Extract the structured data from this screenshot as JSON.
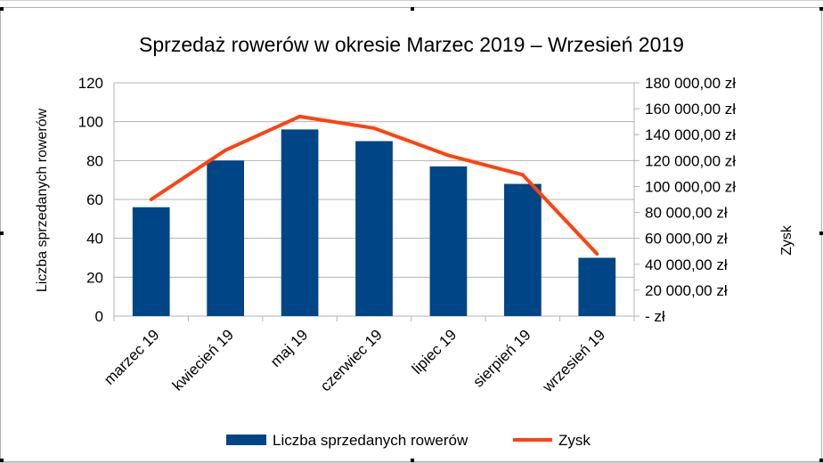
{
  "chart_data": {
    "type": "bar",
    "title": "Sprzedaż rowerów w okresie Marzec 2019 – Wrzesień 2019",
    "categories": [
      "marzec 19",
      "kwiecień 19",
      "maj 19",
      "czerwiec 19",
      "lipiec 19",
      "sierpień 19",
      "wrzesień 19"
    ],
    "series": [
      {
        "name": "Liczba sprzedanych rowerów",
        "type": "bar",
        "axis": "left",
        "color": "#004586",
        "values": [
          56,
          80,
          96,
          90,
          77,
          68,
          30
        ]
      },
      {
        "name": "Zysk",
        "type": "line",
        "axis": "right",
        "color": "#ff420e",
        "values": [
          90000,
          128000,
          154000,
          145000,
          124000,
          109000,
          48000
        ]
      }
    ],
    "ylabel_left": "Liczba sprzedanych rowerów",
    "ylabel_right": "Zysk",
    "ylim_left": [
      0,
      120
    ],
    "yticks_left": [
      "0",
      "20",
      "40",
      "60",
      "80",
      "100",
      "120"
    ],
    "ylim_right": [
      0,
      180000
    ],
    "yticks_right": [
      "- zł",
      "20 000,00 zł",
      "40 000,00 zł",
      "60 000,00 zł",
      "80 000,00 zł",
      "100 000,00 zł",
      "120 000,00 zł",
      "140 000,00 zł",
      "160 000,00 zł",
      "180 000,00 zł"
    ],
    "grid": true,
    "legend": "bottom"
  }
}
